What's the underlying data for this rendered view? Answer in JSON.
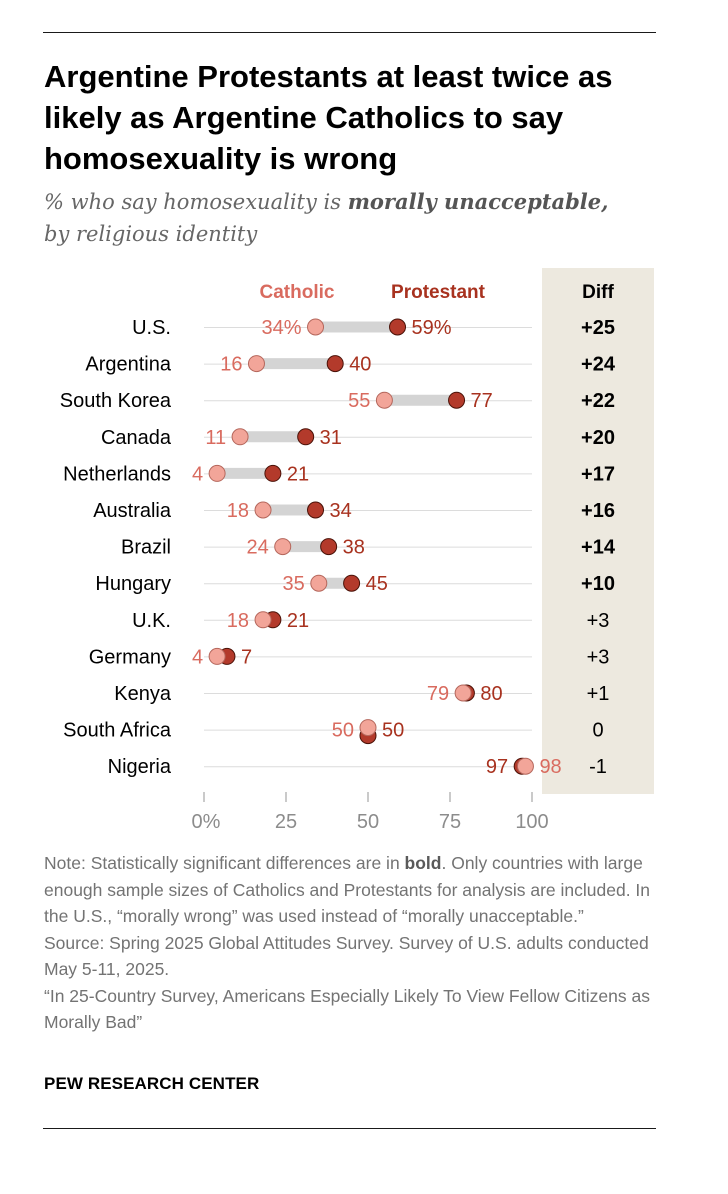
{
  "title": "Argentine Protestants at least twice as likely as Argentine Catholics to say homosexuality is wrong",
  "subtitle": {
    "prefix": "% who say homosexuality is ",
    "emphasis": "morally unacceptable,",
    "suffix": "by religious identity"
  },
  "chart_data": {
    "type": "dot-plot",
    "x_axis": {
      "min": 0,
      "max": 100,
      "ticks": [
        "0%",
        "25",
        "50",
        "75",
        "100"
      ],
      "tick_values": [
        0,
        25,
        50,
        75,
        100
      ]
    },
    "legend": {
      "catholic": "Catholic",
      "protestant": "Protestant",
      "diff_header": "Diff"
    },
    "colors": {
      "catholic": "#f2a599",
      "catholic_text": "#d96b5f",
      "protestant": "#b33a2b",
      "protestant_text": "#a8321f",
      "connector": "#d4d4d4",
      "diff_bg": "#ede9df"
    },
    "rows": [
      {
        "country": "U.S.",
        "catholic": 34,
        "protestant": 59,
        "catholic_label": "34%",
        "protestant_label": "59%",
        "diff": "+25",
        "significant": true
      },
      {
        "country": "Argentina",
        "catholic": 16,
        "protestant": 40,
        "catholic_label": "16",
        "protestant_label": "40",
        "diff": "+24",
        "significant": true
      },
      {
        "country": "South Korea",
        "catholic": 55,
        "protestant": 77,
        "catholic_label": "55",
        "protestant_label": "77",
        "diff": "+22",
        "significant": true
      },
      {
        "country": "Canada",
        "catholic": 11,
        "protestant": 31,
        "catholic_label": "11",
        "protestant_label": "31",
        "diff": "+20",
        "significant": true
      },
      {
        "country": "Netherlands",
        "catholic": 4,
        "protestant": 21,
        "catholic_label": "4",
        "protestant_label": "21",
        "diff": "+17",
        "significant": true
      },
      {
        "country": "Australia",
        "catholic": 18,
        "protestant": 34,
        "catholic_label": "18",
        "protestant_label": "34",
        "diff": "+16",
        "significant": true
      },
      {
        "country": "Brazil",
        "catholic": 24,
        "protestant": 38,
        "catholic_label": "24",
        "protestant_label": "38",
        "diff": "+14",
        "significant": true
      },
      {
        "country": "Hungary",
        "catholic": 35,
        "protestant": 45,
        "catholic_label": "35",
        "protestant_label": "45",
        "diff": "+10",
        "significant": true
      },
      {
        "country": "U.K.",
        "catholic": 18,
        "protestant": 21,
        "catholic_label": "18",
        "protestant_label": "21",
        "diff": "+3",
        "significant": false
      },
      {
        "country": "Germany",
        "catholic": 4,
        "protestant": 7,
        "catholic_label": "4",
        "protestant_label": "7",
        "diff": "+3",
        "significant": false
      },
      {
        "country": "Kenya",
        "catholic": 79,
        "protestant": 80,
        "catholic_label": "79",
        "protestant_label": "80",
        "diff": "+1",
        "significant": false
      },
      {
        "country": "South Africa",
        "catholic": 50,
        "protestant": 50,
        "catholic_label": "50",
        "protestant_label": "50",
        "diff": "0",
        "significant": false
      },
      {
        "country": "Nigeria",
        "catholic": 98,
        "protestant": 97,
        "catholic_label": "98",
        "protestant_label": "97",
        "diff": "-1",
        "significant": false
      }
    ]
  },
  "note": {
    "line1_prefix": "Note: Statistically significant differences are in ",
    "line1_bold": "bold",
    "line1_suffix": ". Only countries with large enough sample sizes of Catholics and Protestants for analysis are included. In the U.S., “morally wrong” was used instead of “morally unacceptable.”",
    "source": "Source: Spring 2025 Global Attitudes Survey. Survey of U.S. adults conducted May 5-11, 2025.",
    "report": "“In 25-Country Survey, Americans Especially Likely To View Fellow Citizens as Morally Bad”"
  },
  "brand": "PEW RESEARCH CENTER"
}
